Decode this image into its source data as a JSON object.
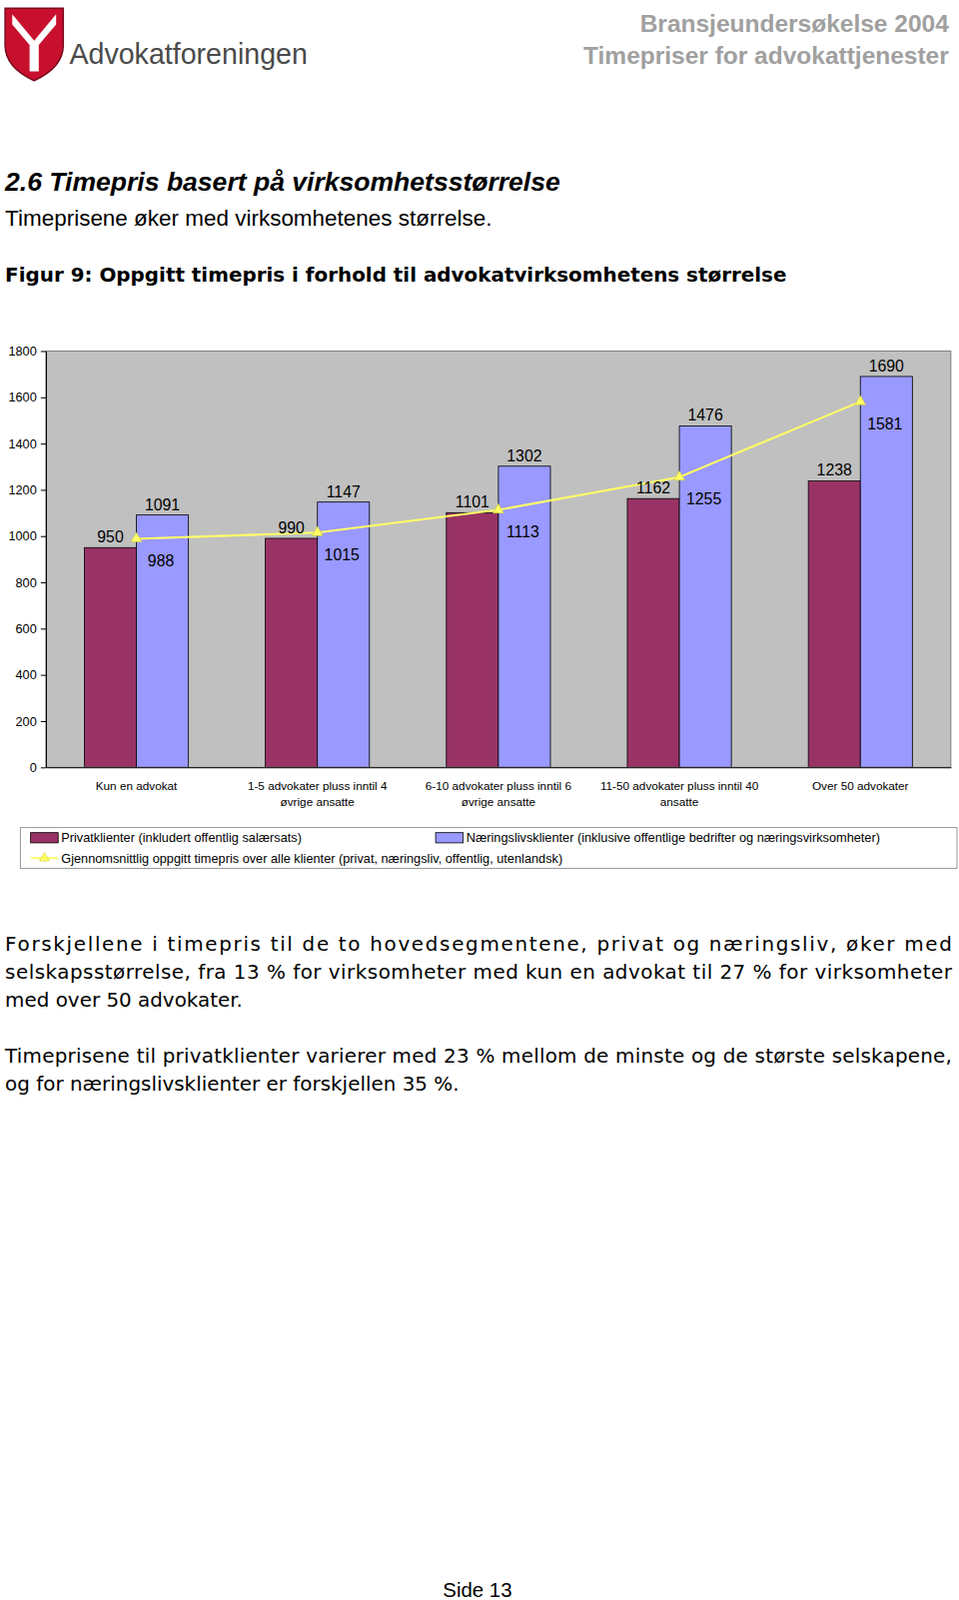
{
  "header": {
    "organization": "Advokatforeningen",
    "report": "Bransjeundersøkelse 2004",
    "report_subtitle": "Timepriser for advokattjenester"
  },
  "section": {
    "title": "2.6 Timepris basert på virksomhetsstørrelse",
    "subtitle": "Timeprisene øker med virksomhetenes størrelse."
  },
  "chart_data": {
    "type": "bar",
    "title": "Figur 9: Oppgitt timepris i forhold til advokatvirksomhetens størrelse",
    "categories": [
      "Kun en advokat",
      "1-5 advokater pluss inntil 4 øvrige ansatte",
      "6-10 advokater pluss inntil 6 øvrige ansatte",
      "11-50 advokater pluss inntil 40 ansatte",
      "Over 50 advokater"
    ],
    "series": [
      {
        "name": "Privatklienter (inkludert offentlig salærsats)",
        "color": "#993366",
        "values": [
          950,
          990,
          1101,
          1162,
          1238
        ]
      },
      {
        "name": "Næringslivsklienter (inklusive offentlige bedrifter og næringsvirksomheter)",
        "color": "#9999ff",
        "values": [
          1091,
          1147,
          1302,
          1476,
          1690
        ]
      },
      {
        "name": "Gjennomsnittlig oppgitt timepris over alle klienter (privat, næringsliv, offentlig, utenlandsk)",
        "type": "line",
        "color": "#ffff66",
        "marker": "triangle",
        "values": [
          988,
          1015,
          1113,
          1255,
          1581
        ]
      }
    ],
    "ylim": [
      0,
      1800
    ],
    "yticks": [
      0,
      200,
      400,
      600,
      800,
      1000,
      1200,
      1400,
      1600,
      1800
    ],
    "grid": false,
    "data_labels": true,
    "legend": "bottom"
  },
  "paragraphs": [
    "Forskjellene i timepris til de to hovedsegmentene, privat og næringsliv, øker med selskapsstørrelse, fra 13 % for virksomheter med kun en advokat til 27 % for virksomheter med over 50 advokater.",
    "Timeprisene til privatklienter varierer med 23 % mellom de minste og de største selskapene, og for næringslivsklienter er forskjellen 35 %."
  ],
  "footer": {
    "page": "Side 13"
  }
}
